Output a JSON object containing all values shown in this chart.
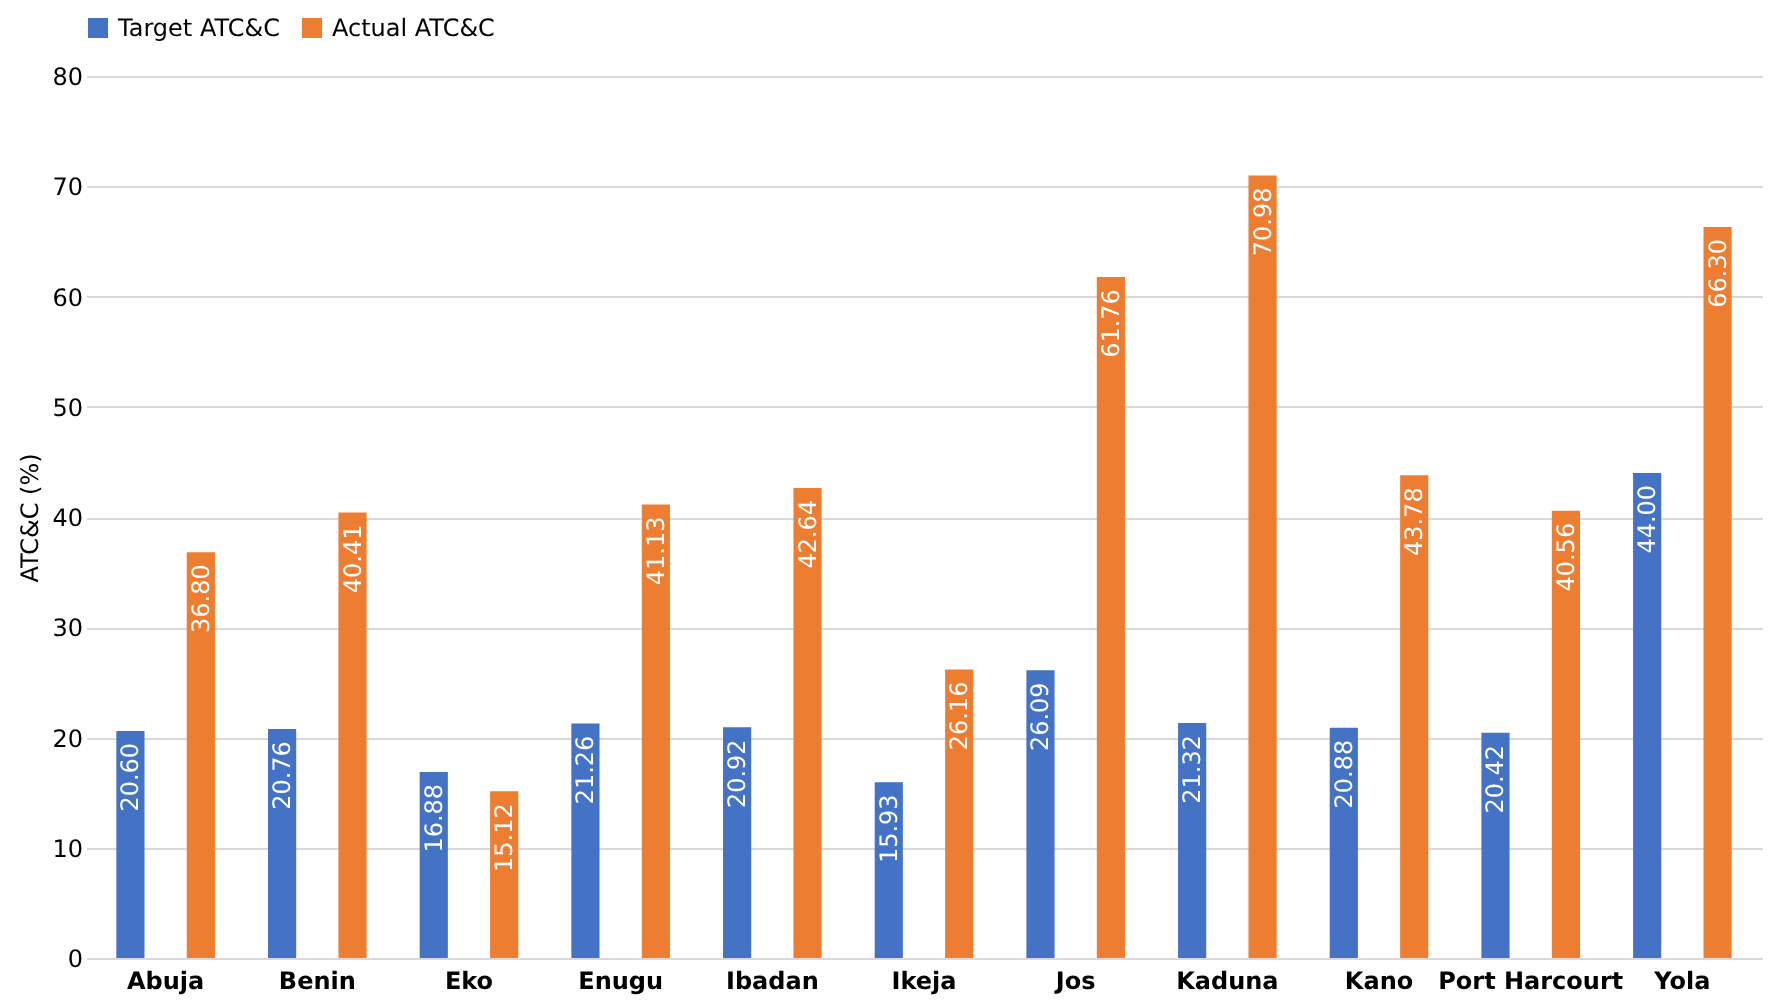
{
  "chart_data": {
    "type": "bar",
    "ylabel": "ATC&C (%)",
    "categories": [
      "Abuja",
      "Benin",
      "Eko",
      "Enugu",
      "Ibadan",
      "Ikeja",
      "Jos",
      "Kaduna",
      "Kano",
      "Port Harcourt",
      "Yola"
    ],
    "series": [
      {
        "name": "Target ATC&C",
        "color": "#4472c4",
        "values": [
          20.6,
          20.76,
          16.88,
          21.26,
          20.92,
          15.93,
          26.09,
          21.32,
          20.88,
          20.42,
          44.0
        ],
        "value_labels": [
          "20.60",
          "20.76",
          "16.88",
          "21.26",
          "20.92",
          "15.93",
          "26.09",
          "21.32",
          "20.88",
          "20.42",
          "44.00"
        ]
      },
      {
        "name": "Actual ATC&C",
        "color": "#ed7d31",
        "values": [
          36.8,
          40.41,
          15.12,
          41.13,
          42.64,
          26.16,
          61.76,
          70.98,
          43.78,
          40.56,
          66.3
        ],
        "value_labels": [
          "36.80",
          "40.41",
          "15.12",
          "41.13",
          "42.64",
          "26.16",
          "61.76",
          "70.98",
          "43.78",
          "40.56",
          "66.30"
        ]
      }
    ],
    "ylim": [
      0,
      80
    ],
    "yticks": [
      0,
      10,
      20,
      30,
      40,
      50,
      60,
      70,
      80
    ],
    "grid": "y",
    "legend": "top"
  }
}
